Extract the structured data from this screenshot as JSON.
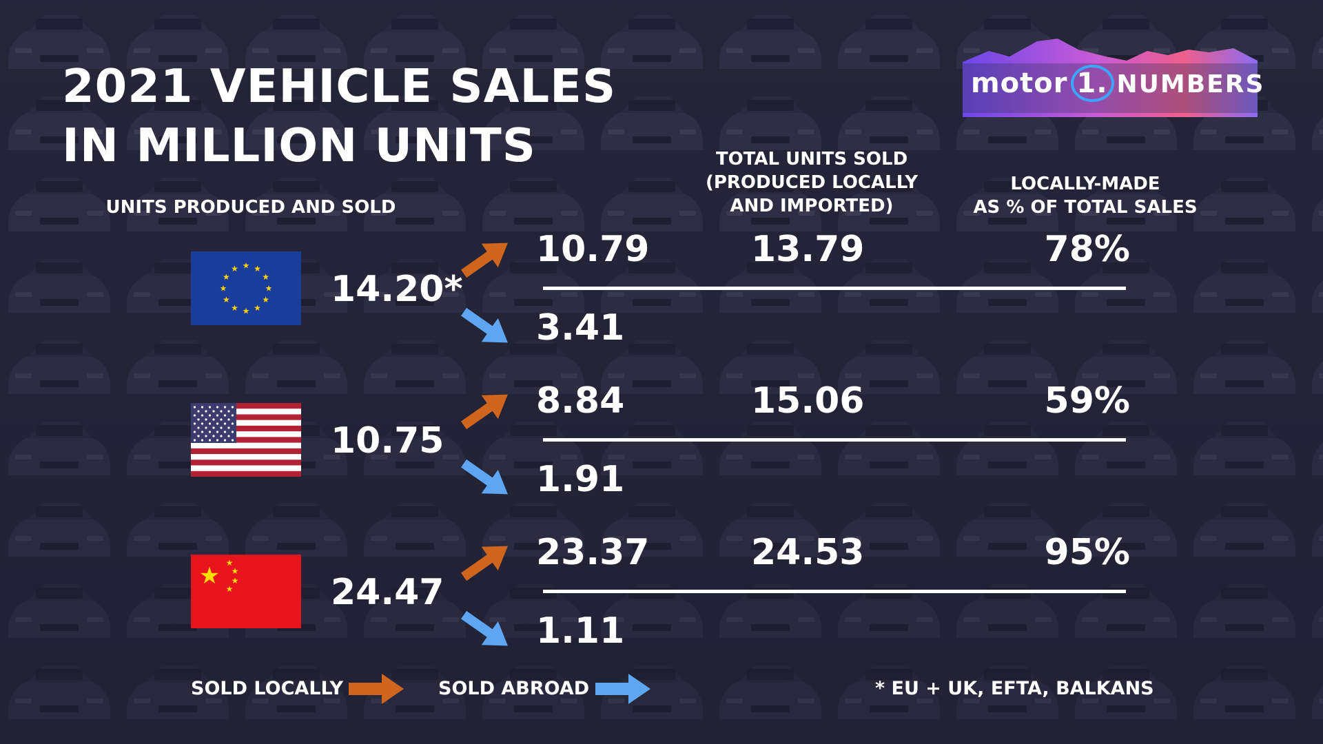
{
  "title": {
    "line1": "2021 VEHICLE SALES",
    "line2": "IN MILLION UNITS"
  },
  "logo": {
    "text_left": "motor",
    "text_mid": "1.",
    "text_right": "NUMBERS"
  },
  "headers": {
    "produced": "UNITS PRODUCED AND SOLD",
    "total_line1": "TOTAL UNITS SOLD",
    "total_line2": "(PRODUCED LOCALLY",
    "total_line3": "AND IMPORTED)",
    "pct_line1": "LOCALLY-MADE",
    "pct_line2": "AS % OF TOTAL SALES"
  },
  "chart_data": {
    "type": "table",
    "title": "2021 VEHICLE SALES IN MILLION UNITS",
    "columns": [
      "UNITS PRODUCED AND SOLD",
      "SOLD LOCALLY",
      "SOLD ABROAD",
      "TOTAL UNITS SOLD (PRODUCED LOCALLY AND IMPORTED)",
      "LOCALLY-MADE AS % OF TOTAL SALES"
    ],
    "rows": [
      {
        "region_icon": "eu-flag-icon",
        "produced": "14.20*",
        "sold_locally": "10.79",
        "sold_abroad": "3.41",
        "total_sold": "13.79",
        "local_pct": "78%"
      },
      {
        "region_icon": "us-flag-icon",
        "produced": "10.75",
        "sold_locally": "8.84",
        "sold_abroad": "1.91",
        "total_sold": "15.06",
        "local_pct": "59%"
      },
      {
        "region_icon": "china-flag-icon",
        "produced": "24.47",
        "sold_locally": "23.37",
        "sold_abroad": "1.11",
        "total_sold": "24.53",
        "local_pct": "95%"
      }
    ]
  },
  "legend": {
    "local_label": "SOLD LOCALLY",
    "abroad_label": "SOLD ABROAD",
    "local_color": "#d0651d",
    "abroad_color": "#5ea6f2"
  },
  "footnote": "* EU + UK, EFTA, BALKANS"
}
